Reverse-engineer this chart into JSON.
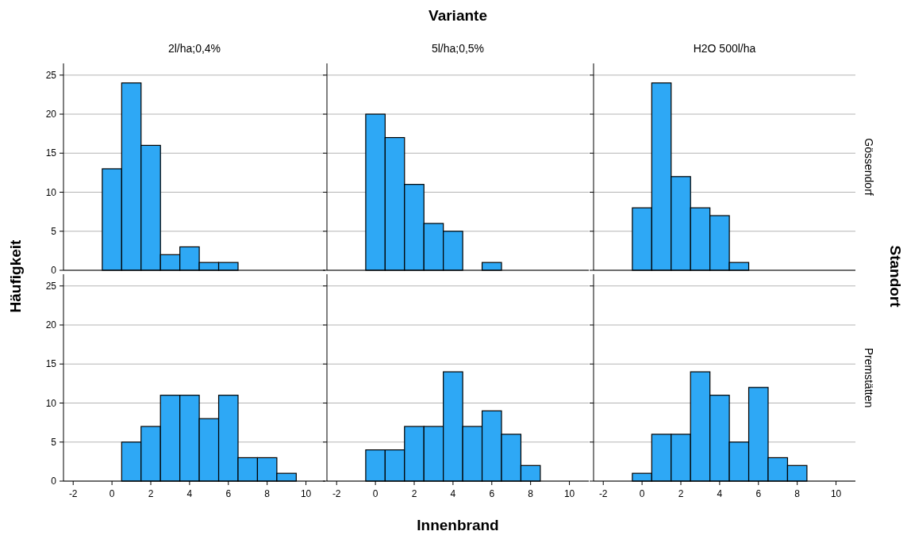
{
  "chart_data": [
    {
      "type": "histogram",
      "title": "2l/ha;0,4%",
      "ylabel": "Häufigkeit",
      "bins": [
        -0.5,
        0.5,
        1.5,
        2.5,
        3.5,
        4.5,
        5.5,
        6.5
      ],
      "values": [
        13,
        24,
        16,
        2,
        3,
        1,
        1
      ],
      "color": "#2ea8f5",
      "xlim": [
        -2.5,
        11
      ],
      "ylim": [
        0,
        26.5
      ],
      "yticks": [
        0,
        5,
        10,
        15,
        20,
        25
      ],
      "grid": "y",
      "tick_labels": "y"
    },
    {
      "type": "histogram",
      "title": "5l/ha;0,5%",
      "annotations": [
        "Variante"
      ],
      "bins": [
        -0.5,
        0.5,
        1.5,
        2.5,
        3.5,
        4.5,
        5.5,
        6.5
      ],
      "values": [
        20,
        17,
        11,
        6,
        5,
        0,
        1
      ],
      "color": "#2ea8f5",
      "xlim": [
        -2.5,
        11
      ],
      "ylim": [
        0,
        26.5
      ],
      "yticks": [
        0,
        5,
        10,
        15,
        20,
        25
      ],
      "grid": "y",
      "tick_labels": false
    },
    {
      "type": "histogram",
      "title": "H2O 500l/ha",
      "y2label": "Gössendorf",
      "annotations": [
        "Standort"
      ],
      "bins": [
        -0.5,
        0.5,
        1.5,
        2.5,
        3.5,
        4.5,
        5.5
      ],
      "values": [
        8,
        24,
        12,
        8,
        7,
        1
      ],
      "color": "#2ea8f5",
      "xlim": [
        -2.5,
        11
      ],
      "ylim": [
        0,
        26.5
      ],
      "yticks": [
        0,
        5,
        10,
        15,
        20,
        25
      ],
      "grid": "y",
      "tick_labels": false
    },
    {
      "type": "histogram",
      "bins": [
        0.5,
        1.5,
        2.5,
        3.5,
        4.5,
        5.5,
        6.5,
        7.5,
        8.5,
        9.5
      ],
      "values": [
        5,
        7,
        11,
        11,
        8,
        11,
        3,
        3,
        1
      ],
      "color": "#2ea8f5",
      "xlim": [
        -2.5,
        11
      ],
      "ylim": [
        0,
        26.5
      ],
      "xticks": [
        -2,
        0,
        2,
        4,
        6,
        8,
        10
      ],
      "yticks": [
        0,
        5,
        10,
        15,
        20,
        25
      ],
      "grid": "y"
    },
    {
      "type": "histogram",
      "xlabel": "Innenbrand",
      "bins": [
        -0.5,
        0.5,
        1.5,
        2.5,
        3.5,
        4.5,
        5.5,
        6.5,
        7.5,
        8.5
      ],
      "values": [
        4,
        4,
        7,
        7,
        14,
        7,
        9,
        6,
        2
      ],
      "color": "#2ea8f5",
      "xlim": [
        -2.5,
        11
      ],
      "ylim": [
        0,
        26.5
      ],
      "xticks": [
        -2,
        0,
        2,
        4,
        6,
        8,
        10
      ],
      "yticks": [
        0,
        5,
        10,
        15,
        20,
        25
      ],
      "grid": "y",
      "tick_labels": "x"
    },
    {
      "type": "histogram",
      "y2label": "Premstätten",
      "bins": [
        -0.5,
        0.5,
        1.5,
        2.5,
        3.5,
        4.5,
        5.5,
        6.5,
        7.5,
        8.5
      ],
      "values": [
        1,
        6,
        6,
        14,
        11,
        5,
        12,
        3,
        2
      ],
      "color": "#2ea8f5",
      "xlim": [
        -2.5,
        11
      ],
      "ylim": [
        0,
        26.5
      ],
      "xticks": [
        -2,
        0,
        2,
        4,
        6,
        8,
        10
      ],
      "yticks": [
        0,
        5,
        10,
        15,
        20,
        25
      ],
      "grid": "y",
      "tick_labels": "x"
    }
  ]
}
